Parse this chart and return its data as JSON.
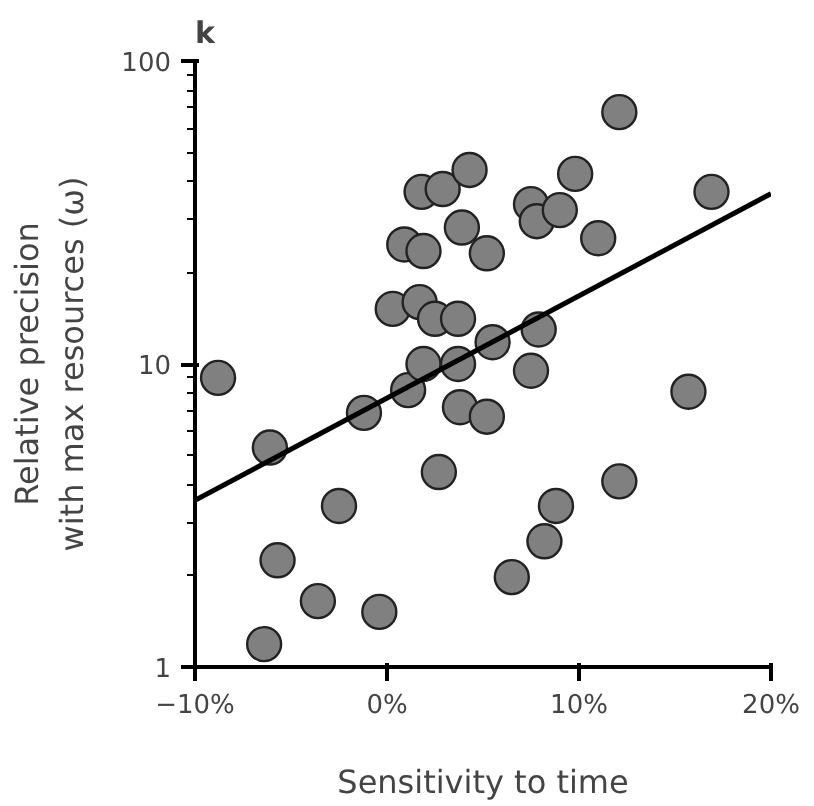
{
  "chart_data": {
    "type": "scatter",
    "title": "k",
    "xlabel": "Sensitivity to time",
    "ylabel": "Relative precision\nwith max resources (ω)",
    "log": "y",
    "grid": false,
    "xlim": [
      -10,
      20
    ],
    "xticks": [
      {
        "value": -10,
        "label": "−10%"
      },
      {
        "value": 0,
        "label": "0%"
      },
      {
        "value": 10,
        "label": "10%"
      },
      {
        "value": 20,
        "label": "20%"
      }
    ],
    "ylim": [
      1,
      100
    ],
    "yticks": [
      1,
      10,
      100,
      {
        "value": 2,
        "label": null
      },
      {
        "value": 3,
        "label": null
      },
      {
        "value": 4,
        "label": null
      },
      {
        "value": 5,
        "label": null
      },
      {
        "value": 6,
        "label": null
      },
      {
        "value": 7,
        "label": null
      },
      {
        "value": 8,
        "label": null
      },
      {
        "value": 9,
        "label": null
      },
      {
        "value": 20,
        "label": null
      },
      {
        "value": 30,
        "label": null
      },
      {
        "value": 40,
        "label": null
      },
      {
        "value": 50,
        "label": null
      },
      {
        "value": 60,
        "label": null
      },
      {
        "value": 70,
        "label": null
      },
      {
        "value": 80,
        "label": null
      },
      {
        "value": 90,
        "label": null
      }
    ],
    "series": [
      {
        "marker": "circle",
        "color": "#808080",
        "x": [
          -8.8,
          -6.1,
          -5.7,
          -6.4,
          -3.6,
          -2.5,
          -0.4,
          -1.2,
          1.1,
          2.7,
          3.8,
          5.2,
          8.8,
          8.2,
          6.5,
          12.1,
          1.9,
          3.7,
          0.3,
          1.7,
          2.5,
          3.7,
          5.5,
          7.9,
          7.5,
          0.9,
          1.9,
          3.9,
          5.2,
          1.8,
          2.9,
          4.3,
          7.5,
          7.8,
          9.0,
          9.8,
          11.0,
          12.1,
          16.9,
          15.7
        ],
        "values": [
          9.0,
          5.3,
          2.25,
          1.19,
          1.65,
          3.4,
          1.52,
          6.9,
          8.2,
          4.4,
          7.2,
          6.7,
          3.4,
          2.6,
          1.98,
          4.1,
          10,
          10,
          15.2,
          16,
          14.1,
          14.1,
          11.8,
          13,
          9.5,
          24.8,
          23.6,
          28.2,
          23.2,
          37,
          37.8,
          43.7,
          33.7,
          29.6,
          32.2,
          42.4,
          26,
          67.8,
          37,
          8.1
        ]
      },
      {
        "type": "line",
        "color": "#000000",
        "x": [
          -10,
          20
        ],
        "values": [
          3.55,
          36.5
        ]
      }
    ]
  }
}
